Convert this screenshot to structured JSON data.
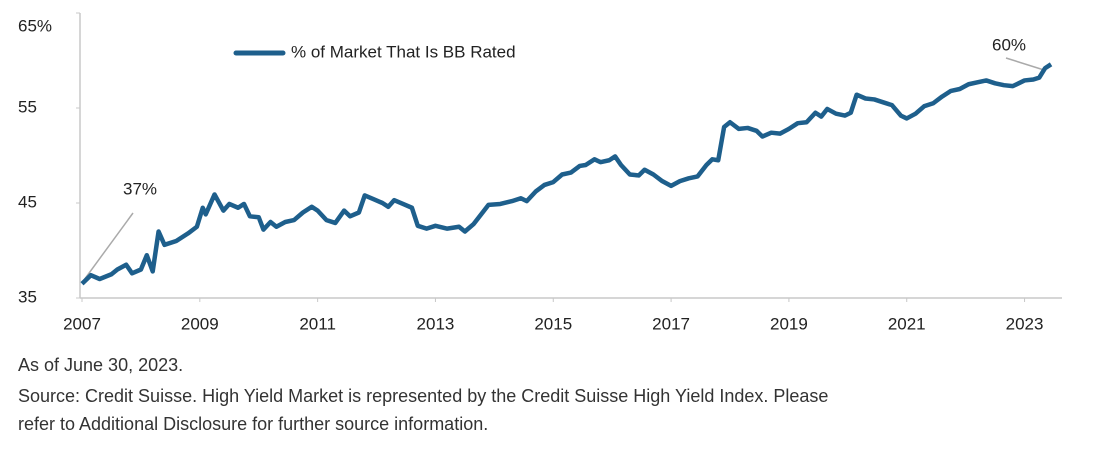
{
  "chart_data": {
    "type": "line",
    "series": [
      {
        "name": "% of Market That Is BB Rated",
        "color": "#1e5f8c",
        "x": [
          2007.0,
          2007.15,
          2007.3,
          2007.5,
          2007.6,
          2007.75,
          2007.85,
          2008.0,
          2008.1,
          2008.2,
          2008.3,
          2008.4,
          2008.6,
          2008.8,
          2008.95,
          2009.05,
          2009.1,
          2009.25,
          2009.4,
          2009.5,
          2009.65,
          2009.75,
          2009.85,
          2010.0,
          2010.08,
          2010.2,
          2010.3,
          2010.45,
          2010.6,
          2010.75,
          2010.9,
          2011.0,
          2011.15,
          2011.3,
          2011.45,
          2011.55,
          2011.7,
          2011.8,
          2011.95,
          2012.1,
          2012.2,
          2012.3,
          2012.45,
          2012.6,
          2012.7,
          2012.85,
          2013.0,
          2013.2,
          2013.4,
          2013.5,
          2013.65,
          2013.8,
          2013.9,
          2014.1,
          2014.3,
          2014.45,
          2014.55,
          2014.7,
          2014.85,
          2015.0,
          2015.15,
          2015.3,
          2015.45,
          2015.55,
          2015.7,
          2015.8,
          2015.95,
          2016.05,
          2016.15,
          2016.3,
          2016.45,
          2016.55,
          2016.7,
          2016.85,
          2017.0,
          2017.15,
          2017.3,
          2017.45,
          2017.6,
          2017.7,
          2017.8,
          2017.9,
          2018.0,
          2018.15,
          2018.3,
          2018.45,
          2018.55,
          2018.7,
          2018.85,
          2019.0,
          2019.15,
          2019.3,
          2019.45,
          2019.55,
          2019.65,
          2019.8,
          2019.95,
          2020.05,
          2020.15,
          2020.3,
          2020.45,
          2020.6,
          2020.75,
          2020.9,
          2021.0,
          2021.15,
          2021.3,
          2021.45,
          2021.6,
          2021.75,
          2021.9,
          2022.05,
          2022.2,
          2022.35,
          2022.5,
          2022.65,
          2022.8,
          2022.9,
          2023.0,
          2023.15,
          2023.25,
          2023.35,
          2023.45
        ],
        "values": [
          36.5,
          37.4,
          37.0,
          37.5,
          38.0,
          38.5,
          37.6,
          38.0,
          39.5,
          37.8,
          42.0,
          40.6,
          41.0,
          41.8,
          42.5,
          44.5,
          43.8,
          45.9,
          44.2,
          44.9,
          44.5,
          44.9,
          43.6,
          43.5,
          42.2,
          43.0,
          42.5,
          43.0,
          43.2,
          44.0,
          44.6,
          44.2,
          43.2,
          42.9,
          44.2,
          43.6,
          44.0,
          45.8,
          45.4,
          45.0,
          44.6,
          45.3,
          44.9,
          44.5,
          42.6,
          42.3,
          42.6,
          42.3,
          42.5,
          42.0,
          42.8,
          44.0,
          44.8,
          44.9,
          45.2,
          45.5,
          45.2,
          46.2,
          46.9,
          47.2,
          48.0,
          48.2,
          48.9,
          49.0,
          49.6,
          49.3,
          49.5,
          49.9,
          49.0,
          48.0,
          47.9,
          48.5,
          48.0,
          47.3,
          46.8,
          47.3,
          47.6,
          47.8,
          49.0,
          49.6,
          49.5,
          53.0,
          53.5,
          52.8,
          52.9,
          52.6,
          52.0,
          52.4,
          52.3,
          52.8,
          53.4,
          53.5,
          54.5,
          54.1,
          54.9,
          54.4,
          54.2,
          54.5,
          56.4,
          56.0,
          55.9,
          55.6,
          55.3,
          54.2,
          53.9,
          54.4,
          55.2,
          55.5,
          56.2,
          56.8,
          57.0,
          57.5,
          57.7,
          57.9,
          57.6,
          57.4,
          57.3,
          57.6,
          57.9,
          58.0,
          58.2,
          59.2,
          59.6
        ]
      }
    ],
    "xlim": [
      2007,
      2023.5
    ],
    "xticks": [
      2007,
      2009,
      2011,
      2013,
      2015,
      2017,
      2019,
      2021,
      2023
    ],
    "ylim": [
      35,
      65
    ],
    "yticks": [
      {
        "value": 65,
        "label": "65%"
      },
      55,
      45,
      35
    ],
    "annotations": [
      "37%",
      "60%"
    ],
    "notes": [
      "As of June 30, 2023.",
      "Source: Credit Suisse. High Yield Market is represented by the Credit Suisse High Yield Index. Please",
      "refer to Additional Disclosure for further source information."
    ]
  }
}
